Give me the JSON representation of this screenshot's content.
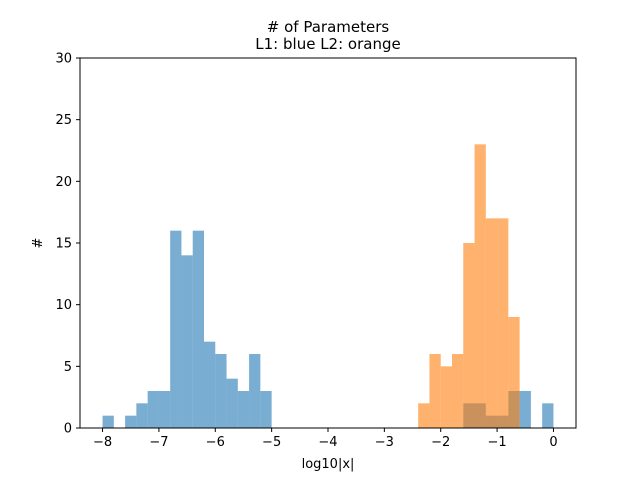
{
  "chart_data": {
    "type": "bar",
    "title": "# of Parameters",
    "subtitle": "L1: blue  L2: orange",
    "xlabel": "log10|x|",
    "ylabel": "#",
    "xlim": [
      -8.4,
      0.4
    ],
    "ylim": [
      0,
      30
    ],
    "x_ticks": [
      "−8",
      "−7",
      "−6",
      "−5",
      "−4",
      "−3",
      "−2",
      "−1",
      "0"
    ],
    "y_ticks": [
      "0",
      "5",
      "10",
      "15",
      "20",
      "25",
      "30"
    ],
    "grid": false,
    "bin_width": 0.2,
    "series": [
      {
        "color": "#1f77b4",
        "opacity": 0.6,
        "bins": [
          {
            "x": -8.0,
            "count": 1
          },
          {
            "x": -7.6,
            "count": 1
          },
          {
            "x": -7.4,
            "count": 2
          },
          {
            "x": -7.2,
            "count": 3
          },
          {
            "x": -7.0,
            "count": 3
          },
          {
            "x": -6.8,
            "count": 16
          },
          {
            "x": -6.6,
            "count": 14
          },
          {
            "x": -6.4,
            "count": 16
          },
          {
            "x": -6.2,
            "count": 7
          },
          {
            "x": -6.0,
            "count": 6
          },
          {
            "x": -5.8,
            "count": 4
          },
          {
            "x": -5.6,
            "count": 3
          },
          {
            "x": -5.4,
            "count": 6
          },
          {
            "x": -5.2,
            "count": 3
          },
          {
            "x": -1.6,
            "count": 2
          },
          {
            "x": -1.4,
            "count": 2
          },
          {
            "x": -1.2,
            "count": 1
          },
          {
            "x": -1.0,
            "count": 1
          },
          {
            "x": -0.8,
            "count": 3
          },
          {
            "x": -0.6,
            "count": 3
          },
          {
            "x": -0.2,
            "count": 2
          }
        ]
      },
      {
        "color": "#ff7f0e",
        "opacity": 0.6,
        "bins": [
          {
            "x": -2.4,
            "count": 2
          },
          {
            "x": -2.2,
            "count": 6
          },
          {
            "x": -2.0,
            "count": 5
          },
          {
            "x": -1.8,
            "count": 6
          },
          {
            "x": -1.6,
            "count": 15
          },
          {
            "x": -1.4,
            "count": 23
          },
          {
            "x": -1.2,
            "count": 17
          },
          {
            "x": -1.0,
            "count": 17
          },
          {
            "x": -0.8,
            "count": 9
          }
        ]
      }
    ]
  }
}
